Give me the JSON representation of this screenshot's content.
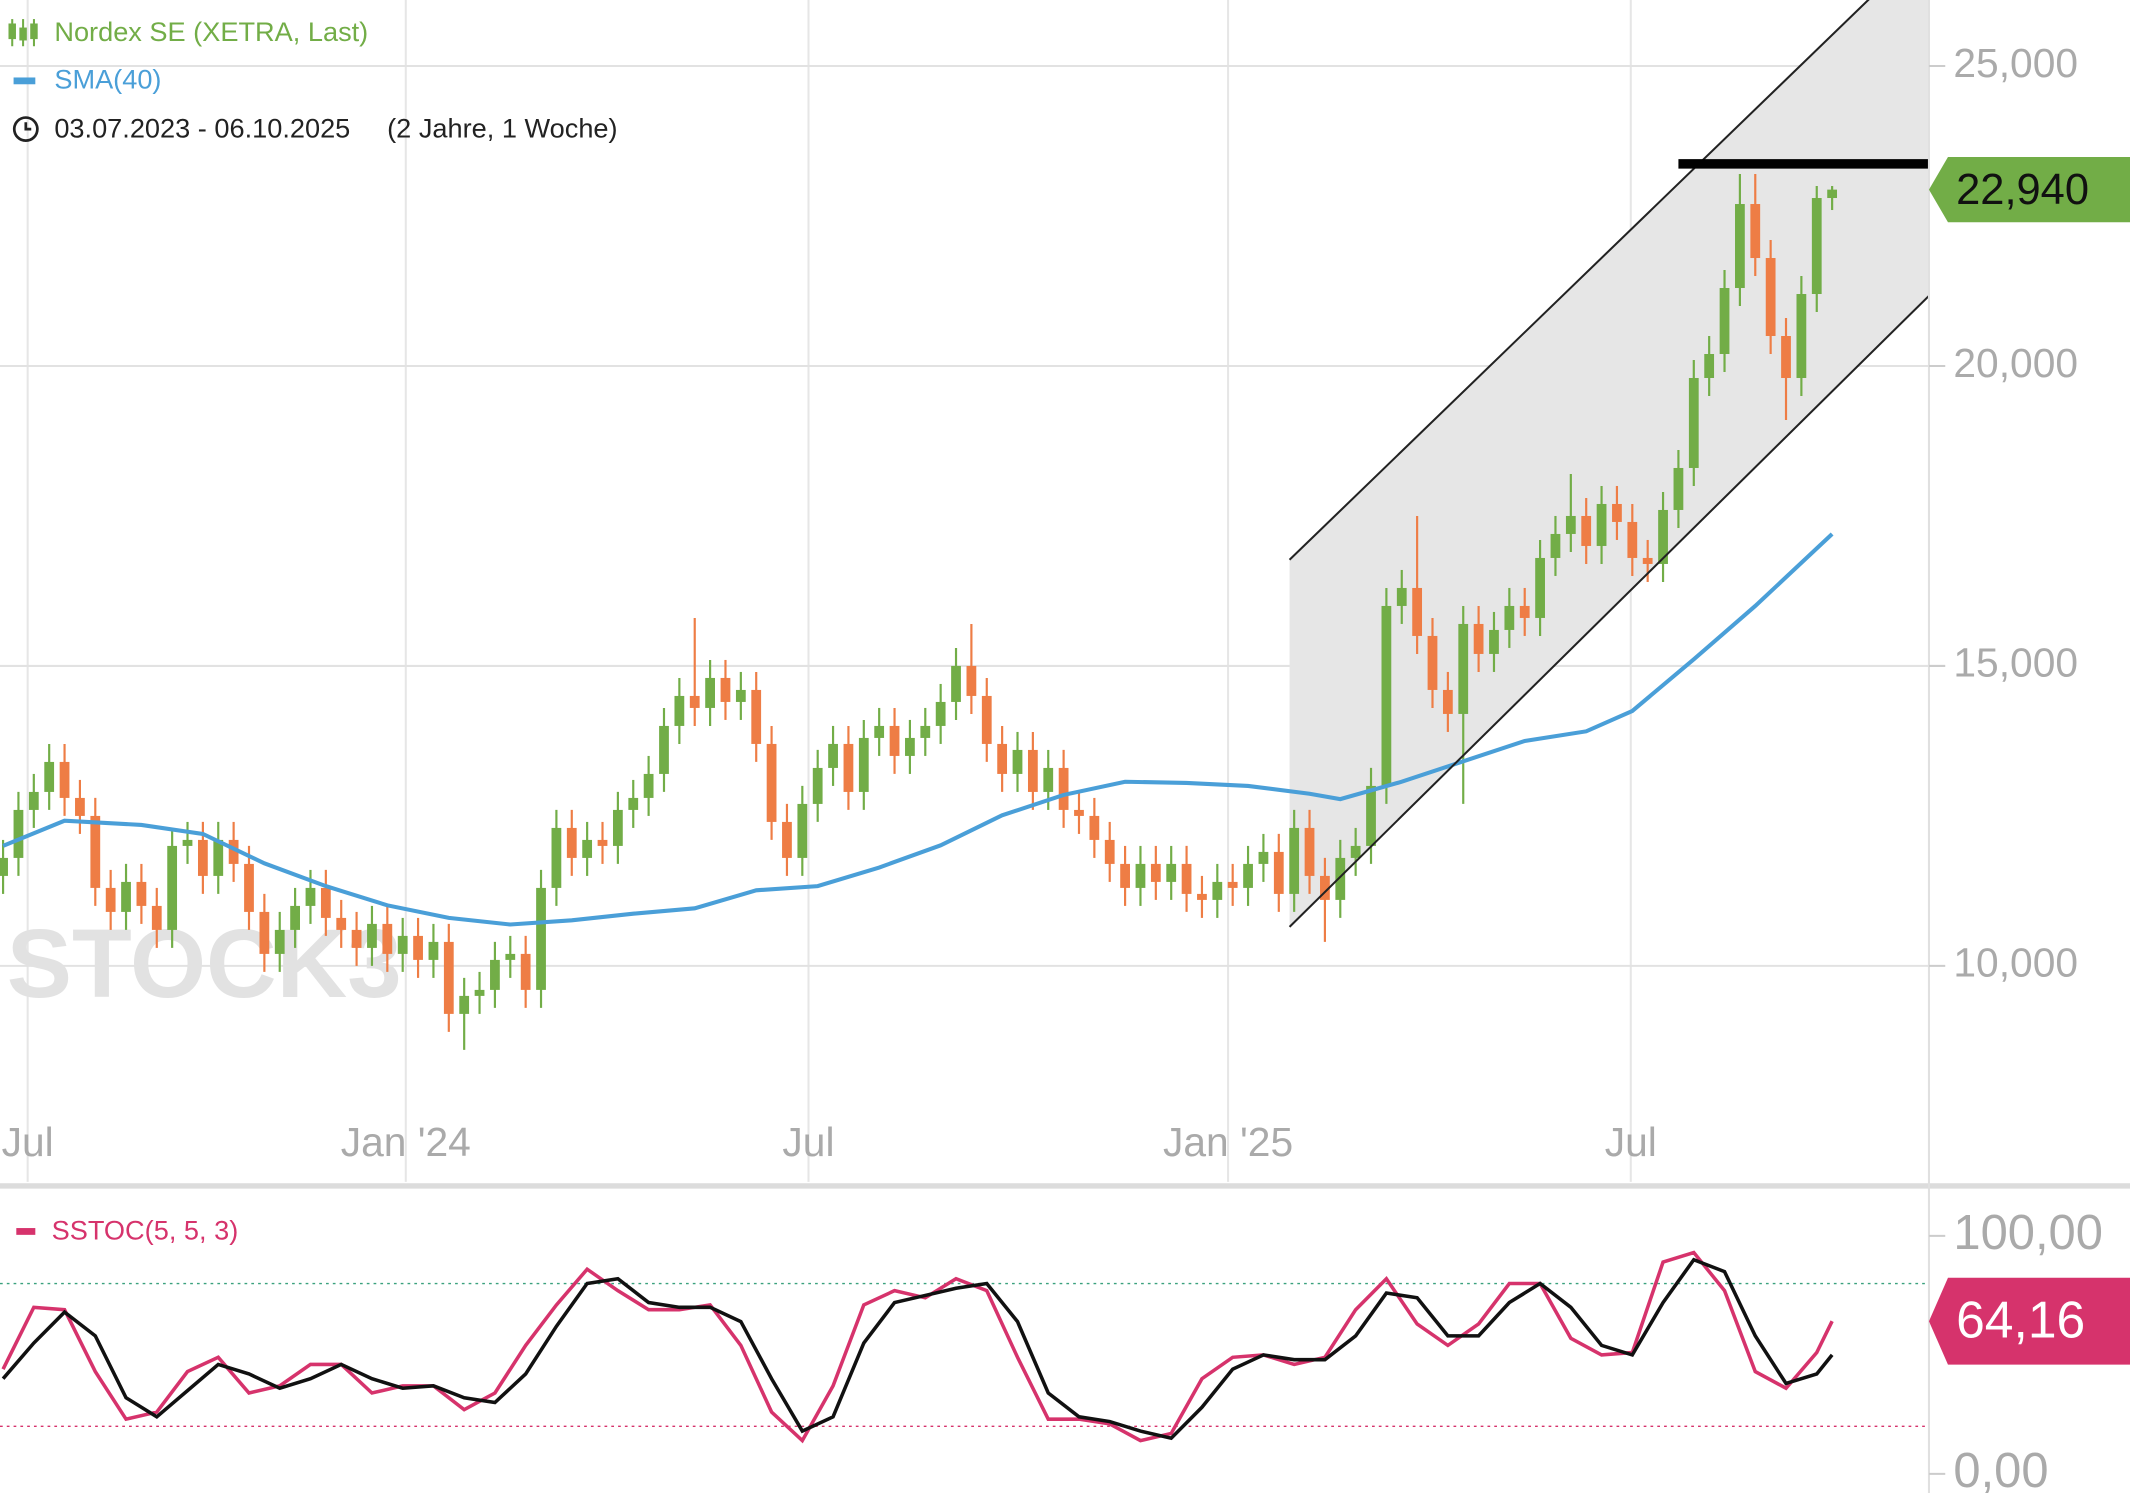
{
  "chart_data": [
    {
      "type": "candlestick",
      "name": "Nordex SE (XETRA, Last)",
      "period": "03.07.2023 - 06.10.2025",
      "period_length": "(2 Jahre, 1 Woche)",
      "watermark": "STOCK3",
      "up_color": "#72ad47",
      "down_color": "#ee7d45",
      "channel_color": "#e6e6e6",
      "xlim": [
        -0.2,
        125.3
      ],
      "ylim": [
        6400,
        26100
      ],
      "xticks": [
        {
          "value": 1.6,
          "label": "Jul"
        },
        {
          "value": 26.2,
          "label": "Jan '24"
        },
        {
          "value": 52.4,
          "label": "Jul"
        },
        {
          "value": 79.7,
          "label": "Jan '25"
        },
        {
          "value": 105.9,
          "label": "Jul"
        }
      ],
      "yticks": [
        {
          "value": 10000,
          "label": "10,000"
        },
        {
          "value": 15000,
          "label": "15,000"
        },
        {
          "value": 20000,
          "label": "20,000"
        },
        {
          "value": 25000,
          "label": "25,000"
        }
      ],
      "grid": true,
      "last_label": "22,940",
      "open": [
        11500,
        11800,
        12600,
        12900,
        13400,
        12800,
        12500,
        11300,
        10900,
        11400,
        11000,
        10600,
        12000,
        12100,
        11500,
        12100,
        11700,
        10900,
        10200,
        10600,
        11000,
        11300,
        10800,
        10600,
        10300,
        10700,
        10200,
        10500,
        10100,
        10400,
        9200,
        9500,
        9600,
        10100,
        10200,
        9600,
        11300,
        12300,
        11800,
        12100,
        12000,
        12600,
        12800,
        13200,
        14000,
        14500,
        14300,
        14800,
        14400,
        14600,
        13700,
        12400,
        11800,
        12700,
        13300,
        13700,
        12900,
        13800,
        14000,
        13500,
        13800,
        14000,
        14400,
        15000,
        14500,
        13700,
        13200,
        13600,
        12900,
        13300,
        12600,
        12500,
        12100,
        11700,
        11300,
        11700,
        11400,
        11700,
        11200,
        11100,
        11400,
        11300,
        11700,
        11900,
        11200,
        12300,
        11500,
        11100,
        11800,
        12000,
        13000,
        16000,
        16300,
        15500,
        14600,
        14200,
        15700,
        15200,
        15600,
        16000,
        15800,
        16800,
        17200,
        17500,
        17000,
        17700,
        17400,
        16800,
        16700,
        17600,
        18300,
        19800,
        20200,
        21300,
        22700,
        21800,
        20500,
        19800,
        21200,
        22800
      ],
      "high": [
        12100,
        12900,
        13200,
        13700,
        13700,
        13100,
        12800,
        11600,
        11700,
        11700,
        11300,
        12300,
        12400,
        12400,
        12400,
        12400,
        12000,
        11200,
        10900,
        11300,
        11600,
        11600,
        11100,
        10900,
        11000,
        11000,
        10800,
        10800,
        10700,
        10700,
        9800,
        9900,
        10400,
        10500,
        10500,
        11600,
        12600,
        12600,
        12400,
        12400,
        12900,
        13100,
        13500,
        14300,
        14800,
        15800,
        15100,
        15100,
        14900,
        14900,
        14000,
        12700,
        13000,
        13600,
        14000,
        14000,
        14100,
        14300,
        14300,
        14100,
        14300,
        14700,
        15300,
        15700,
        14800,
        14000,
        13900,
        13900,
        13600,
        13600,
        12900,
        12800,
        12400,
        12000,
        12000,
        12000,
        12000,
        12000,
        11500,
        11700,
        11700,
        12000,
        12200,
        12200,
        12600,
        12600,
        11800,
        12100,
        12300,
        13300,
        16300,
        16600,
        17500,
        15800,
        14900,
        16000,
        16000,
        15900,
        16300,
        16300,
        17100,
        17500,
        18200,
        17800,
        18000,
        18000,
        17700,
        17100,
        17900,
        18600,
        20100,
        20500,
        21600,
        23200,
        23200,
        22100,
        20800,
        21500,
        23000,
        23000
      ],
      "low": [
        11200,
        11500,
        12300,
        12600,
        12500,
        12200,
        11000,
        10600,
        10600,
        10700,
        10300,
        10300,
        11700,
        11200,
        11200,
        11400,
        10600,
        9900,
        9900,
        10300,
        10700,
        10500,
        10300,
        10000,
        10000,
        9900,
        9900,
        9800,
        9800,
        8900,
        8600,
        9200,
        9300,
        9800,
        9300,
        9300,
        11000,
        11500,
        11500,
        11700,
        11700,
        12300,
        12500,
        12900,
        13700,
        14000,
        14000,
        14100,
        14100,
        13400,
        12100,
        11500,
        11500,
        12400,
        13000,
        12600,
        12600,
        13500,
        13200,
        13200,
        13500,
        13700,
        14100,
        14200,
        13400,
        12900,
        12900,
        12600,
        12600,
        12300,
        12200,
        11800,
        11400,
        11000,
        11000,
        11100,
        11100,
        10900,
        10800,
        10800,
        11000,
        11000,
        11400,
        10900,
        10900,
        11200,
        10400,
        10800,
        11500,
        11700,
        12700,
        15700,
        15200,
        14300,
        13900,
        12700,
        14900,
        14900,
        15300,
        15500,
        15500,
        16500,
        16900,
        16700,
        16700,
        17100,
        16500,
        16400,
        16400,
        17300,
        18000,
        19500,
        19900,
        21000,
        21500,
        20200,
        19100,
        19500,
        20900,
        22600
      ],
      "close": [
        11800,
        12600,
        12900,
        13400,
        12800,
        12500,
        11300,
        10900,
        11400,
        11000,
        10600,
        12000,
        12100,
        11500,
        12100,
        11700,
        10900,
        10200,
        10600,
        11000,
        11300,
        10800,
        10600,
        10300,
        10700,
        10200,
        10500,
        10100,
        10400,
        9200,
        9500,
        9600,
        10100,
        10200,
        9600,
        11300,
        12300,
        11800,
        12100,
        12000,
        12600,
        12800,
        13200,
        14000,
        14500,
        14300,
        14800,
        14400,
        14600,
        13700,
        12400,
        11800,
        12700,
        13300,
        13700,
        12900,
        13800,
        14000,
        13500,
        13800,
        14000,
        14400,
        15000,
        14500,
        13700,
        13200,
        13600,
        12900,
        13300,
        12600,
        12500,
        12100,
        11700,
        11300,
        11700,
        11400,
        11700,
        11200,
        11100,
        11400,
        11300,
        11700,
        11900,
        11200,
        12300,
        11500,
        11100,
        11800,
        12000,
        13000,
        16000,
        16300,
        15500,
        14600,
        14200,
        15700,
        15200,
        15600,
        16000,
        15800,
        16800,
        17200,
        17500,
        17000,
        17700,
        17400,
        16800,
        16700,
        17600,
        18300,
        19800,
        20200,
        21300,
        22700,
        21800,
        20500,
        19800,
        21200,
        22800,
        22940
      ],
      "lines": [
        {
          "name": "SMA(40)",
          "color": "#4a9fd8",
          "x": [
            0,
            4,
            9,
            13,
            17,
            21,
            25,
            29,
            33,
            37,
            41,
            45,
            49,
            53,
            57,
            61,
            65,
            69,
            73,
            77,
            81,
            85,
            87,
            91,
            95,
            99,
            103,
            106,
            110,
            114,
            119
          ],
          "values": [
            12000,
            12420,
            12350,
            12200,
            11710,
            11330,
            11010,
            10800,
            10690,
            10760,
            10870,
            10960,
            11260,
            11330,
            11640,
            12010,
            12510,
            12850,
            13070,
            13050,
            13000,
            12870,
            12780,
            13070,
            13410,
            13750,
            13910,
            14250,
            15110,
            16000,
            17200
          ]
        }
      ],
      "trendlines": [
        {
          "color": "#222222",
          "width": 1.5,
          "x": [
            83.7,
            125.3
          ],
          "y": [
            16770,
            27080
          ]
        },
        {
          "color": "#222222",
          "width": 1.5,
          "x": [
            83.7,
            125.3
          ],
          "y": [
            10650,
            21170
          ]
        },
        {
          "color": "#000000",
          "width": 7,
          "x": [
            109,
            125.3
          ],
          "y": [
            23370,
            23370
          ]
        }
      ]
    },
    {
      "type": "line",
      "xlim": [
        -0.2,
        125.3
      ],
      "ylim": [
        -8,
        117
      ],
      "yticks": [
        {
          "value": 0,
          "label": "0,00"
        },
        {
          "value": 100,
          "label": "100,00"
        }
      ],
      "levels": [
        {
          "value": 80,
          "color": "#3aa17e"
        },
        {
          "value": 20,
          "color": "#d6336c"
        }
      ],
      "last_label": "64,16",
      "series": [
        {
          "name": "SSTOC(5, 5, 3)",
          "color": "#d6336c",
          "x": [
            0,
            2,
            4,
            6,
            8,
            10,
            12,
            14,
            16,
            18,
            20,
            22,
            24,
            26,
            28,
            30,
            32,
            34,
            36,
            38,
            40,
            42,
            44,
            46,
            48,
            50,
            52,
            54,
            56,
            58,
            60,
            62,
            64,
            66,
            68,
            70,
            72,
            74,
            76,
            78,
            80,
            82,
            84,
            86,
            88,
            90,
            92,
            94,
            96,
            98,
            100,
            102,
            104,
            106,
            108,
            110,
            112,
            114,
            116,
            118,
            119
          ],
          "values": [
            44,
            70,
            69,
            43,
            23,
            26,
            43,
            49,
            34,
            37,
            46,
            46,
            34,
            37,
            37,
            27,
            34,
            54,
            71,
            86,
            77,
            69,
            69,
            71,
            54,
            26,
            14,
            37,
            71,
            77,
            74,
            82,
            77,
            49,
            23,
            23,
            21,
            14,
            17,
            40,
            49,
            50,
            46,
            49,
            69,
            82,
            63,
            54,
            63,
            80,
            80,
            57,
            50,
            51,
            89,
            93,
            77,
            43,
            36,
            51,
            64.16
          ]
        },
        {
          "color": "#111111",
          "x": [
            0,
            2,
            4,
            6,
            8,
            10,
            12,
            14,
            16,
            18,
            20,
            22,
            24,
            26,
            28,
            30,
            32,
            34,
            36,
            38,
            40,
            42,
            44,
            46,
            48,
            50,
            52,
            54,
            56,
            58,
            60,
            62,
            64,
            66,
            68,
            70,
            72,
            74,
            76,
            78,
            80,
            82,
            84,
            86,
            88,
            90,
            92,
            94,
            96,
            98,
            100,
            102,
            104,
            106,
            108,
            110,
            112,
            114,
            116,
            118,
            119
          ],
          "values": [
            40,
            55,
            68,
            58,
            32,
            24,
            35,
            46,
            42,
            36,
            40,
            46,
            40,
            36,
            37,
            32,
            30,
            42,
            62,
            80,
            82,
            72,
            70,
            70,
            64,
            40,
            18,
            24,
            55,
            72,
            75,
            78,
            80,
            64,
            34,
            24,
            22,
            18,
            15,
            28,
            44,
            50,
            48,
            48,
            58,
            76,
            74,
            58,
            58,
            72,
            80,
            70,
            54,
            50,
            72,
            90,
            85,
            58,
            38,
            42,
            50
          ]
        }
      ]
    }
  ]
}
